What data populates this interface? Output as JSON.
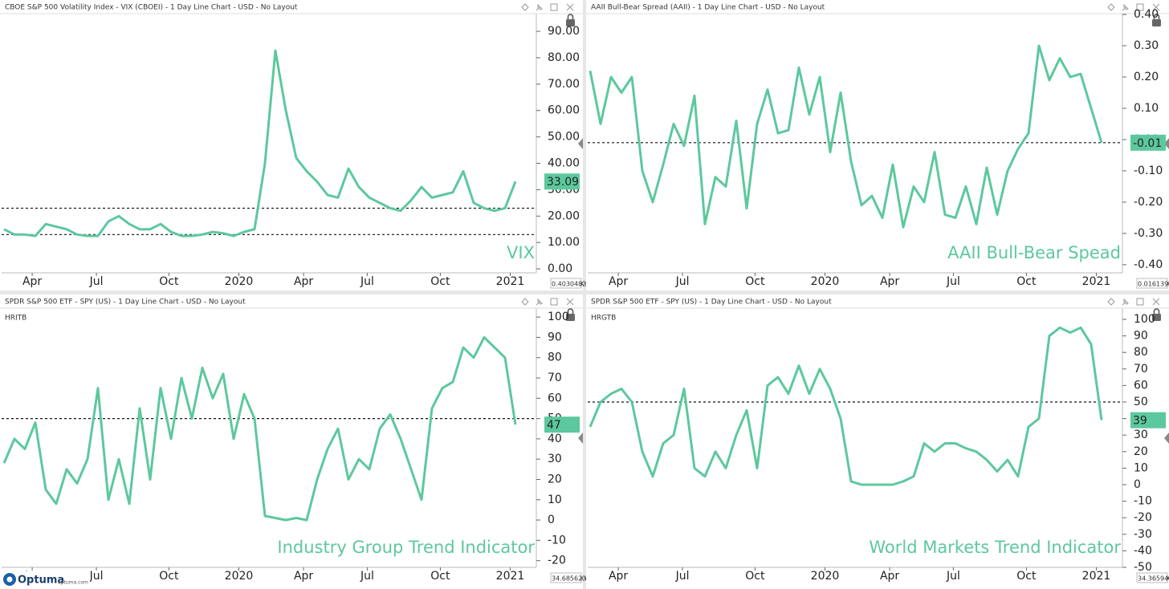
{
  "brand": {
    "name": "Optuma",
    "url": "optuma.com"
  },
  "chart_data": [
    {
      "type": "line",
      "title": "CBOE S&P 500 Volatility Index - VIX (CBOEI) - 1 Day Line Chart - USD - No Layout",
      "series": [
        {
          "name": "VIX",
          "color": "#5cc89d",
          "values": [
            15,
            13,
            13,
            12.5,
            17,
            16,
            15,
            13,
            12.5,
            12.5,
            18,
            20,
            17,
            15,
            15,
            17,
            14,
            12.5,
            12.5,
            13,
            14,
            13.5,
            12.5,
            14,
            15,
            40,
            82.7,
            60,
            42,
            37,
            33,
            28,
            27,
            38,
            31,
            27,
            25,
            23,
            22,
            26,
            31,
            27,
            28,
            29,
            37,
            25,
            23,
            22,
            23,
            33.09
          ]
        }
      ],
      "xlim": [
        0,
        51
      ],
      "xticks": [
        {
          "value": 2.7,
          "label": "Apr"
        },
        {
          "value": 8.85,
          "label": "Jul"
        },
        {
          "value": 15.8,
          "label": "Oct"
        },
        {
          "value": 22.5,
          "label": "2020"
        },
        {
          "value": 28.7,
          "label": "Apr"
        },
        {
          "value": 34.8,
          "label": "Jul"
        },
        {
          "value": 41.8,
          "label": "Oct"
        },
        {
          "value": 48.5,
          "label": "2021"
        }
      ],
      "ylim": [
        -1.5,
        96.4
      ],
      "yticks": [
        {
          "value": 0,
          "label": "0.00"
        },
        {
          "value": 10,
          "label": "10.00"
        },
        {
          "value": 20,
          "label": "20.00"
        },
        {
          "value": 30,
          "label": "30.00"
        },
        {
          "value": 40,
          "label": "40.00"
        },
        {
          "value": 50,
          "label": "50.00"
        },
        {
          "value": 60,
          "label": "60.00"
        },
        {
          "value": 70,
          "label": "70.00"
        },
        {
          "value": 80,
          "label": "80.00"
        },
        {
          "value": 90,
          "label": "90.00"
        }
      ],
      "reference_lines": [
        23,
        13
      ],
      "scale_value": "0.4030482",
      "axis_mode": "XY"
    },
    {
      "type": "line",
      "title": "AAII Bull-Bear Spread (AAII) - 1 Day Line Chart - USD - No Layout",
      "series": [
        {
          "name": "AAII Bull-Bear Spead",
          "color": "#5cc89d",
          "values": [
            0.22,
            0.05,
            0.2,
            0.15,
            0.2,
            -0.1,
            -0.2,
            -0.08,
            0.05,
            -0.02,
            0.14,
            -0.27,
            -0.12,
            -0.15,
            0.06,
            -0.22,
            0.05,
            0.16,
            0.02,
            0.03,
            0.23,
            0.08,
            0.2,
            -0.04,
            0.15,
            -0.07,
            -0.21,
            -0.18,
            -0.25,
            -0.08,
            -0.28,
            -0.15,
            -0.2,
            -0.04,
            -0.24,
            -0.25,
            -0.15,
            -0.27,
            -0.09,
            -0.24,
            -0.1,
            -0.03,
            0.02,
            0.3,
            0.19,
            0.26,
            0.2,
            0.21,
            0.1,
            -0.01
          ]
        }
      ],
      "xlim": [
        0,
        51
      ],
      "xticks": [
        {
          "value": 2.7,
          "label": "Apr"
        },
        {
          "value": 8.85,
          "label": "Jul"
        },
        {
          "value": 15.8,
          "label": "Oct"
        },
        {
          "value": 22.5,
          "label": "2020"
        },
        {
          "value": 28.7,
          "label": "Apr"
        },
        {
          "value": 34.8,
          "label": "Jul"
        },
        {
          "value": 41.8,
          "label": "Oct"
        },
        {
          "value": 48.5,
          "label": "2021"
        }
      ],
      "ylim": [
        -0.426,
        0.4
      ],
      "yticks": [
        {
          "value": -0.4,
          "label": "-0.40"
        },
        {
          "value": -0.3,
          "label": "-0.30"
        },
        {
          "value": -0.2,
          "label": "-0.20"
        },
        {
          "value": -0.1,
          "label": "-0.10"
        },
        {
          "value": 0,
          "label": "0.00"
        },
        {
          "value": 0.1,
          "label": "0.10"
        },
        {
          "value": 0.2,
          "label": "0.20"
        },
        {
          "value": 0.3,
          "label": "0.30"
        },
        {
          "value": 0.4,
          "label": "0.40"
        }
      ],
      "reference_lines": [
        -0.01
      ],
      "scale_value": "0.0161392",
      "axis_mode": "XY"
    },
    {
      "type": "line",
      "title": "SPDR S&P 500 ETF - SPY (US) - 1 Day Line Chart - USD - No Layout",
      "subtitle": "HRITB",
      "series": [
        {
          "name": "Industry Group  Trend Indicator",
          "color": "#5cc89d",
          "values": [
            28,
            40,
            35,
            48,
            15,
            8,
            25,
            18,
            30,
            65,
            10,
            30,
            8,
            55,
            20,
            65,
            40,
            70,
            50,
            75,
            60,
            72,
            40,
            62,
            50,
            2,
            1,
            0,
            1,
            0,
            20,
            35,
            45,
            20,
            30,
            25,
            45,
            52,
            40,
            25,
            10,
            55,
            65,
            68,
            85,
            80,
            90,
            85,
            80,
            47
          ]
        }
      ],
      "xlim": [
        0,
        51
      ],
      "xticks": [
        {
          "value": 2.7,
          "label": "Apr"
        },
        {
          "value": 8.85,
          "label": "Jul"
        },
        {
          "value": 15.8,
          "label": "Oct"
        },
        {
          "value": 22.5,
          "label": "2020"
        },
        {
          "value": 28.7,
          "label": "Apr"
        },
        {
          "value": 34.8,
          "label": "Jul"
        },
        {
          "value": 41.8,
          "label": "Oct"
        },
        {
          "value": 48.5,
          "label": "2021"
        }
      ],
      "ylim": [
        -23.3,
        104
      ],
      "yticks": [
        -20,
        -10,
        0,
        10,
        20,
        30,
        40,
        50,
        60,
        70,
        80,
        90,
        100
      ],
      "reference_lines": [
        50
      ],
      "scale_value": "34.685623",
      "axis_mode": "XY"
    },
    {
      "type": "line",
      "title": "SPDR S&P 500 ETF - SPY (US) - 1 Day Line Chart - USD - No Layout",
      "subtitle": "HRGTB",
      "series": [
        {
          "name": "World Markets Trend Indicator",
          "color": "#5cc89d",
          "values": [
            35,
            50,
            55,
            58,
            50,
            20,
            5,
            25,
            30,
            58,
            10,
            5,
            20,
            10,
            30,
            45,
            10,
            60,
            65,
            55,
            72,
            55,
            70,
            58,
            40,
            2,
            0,
            0,
            0,
            0,
            2,
            5,
            25,
            20,
            25,
            25,
            22,
            20,
            15,
            8,
            15,
            5,
            35,
            40,
            90,
            95,
            92,
            95,
            85,
            39
          ]
        }
      ],
      "xlim": [
        0,
        51
      ],
      "xticks": [
        {
          "value": 2.7,
          "label": "Apr"
        },
        {
          "value": 8.85,
          "label": "Jul"
        },
        {
          "value": 15.8,
          "label": "Oct"
        },
        {
          "value": 22.5,
          "label": "2020"
        },
        {
          "value": 28.7,
          "label": "Apr"
        },
        {
          "value": 34.8,
          "label": "Jul"
        },
        {
          "value": 41.8,
          "label": "Oct"
        },
        {
          "value": 48.5,
          "label": "2021"
        }
      ],
      "ylim": [
        -50,
        106.3
      ],
      "yticks": [
        -50,
        -40,
        -30,
        -20,
        -10,
        0,
        10,
        20,
        30,
        40,
        50,
        60,
        70,
        80,
        90,
        100
      ],
      "reference_lines": [
        50
      ],
      "scale_value": "34.365940",
      "axis_mode": "XY"
    }
  ]
}
